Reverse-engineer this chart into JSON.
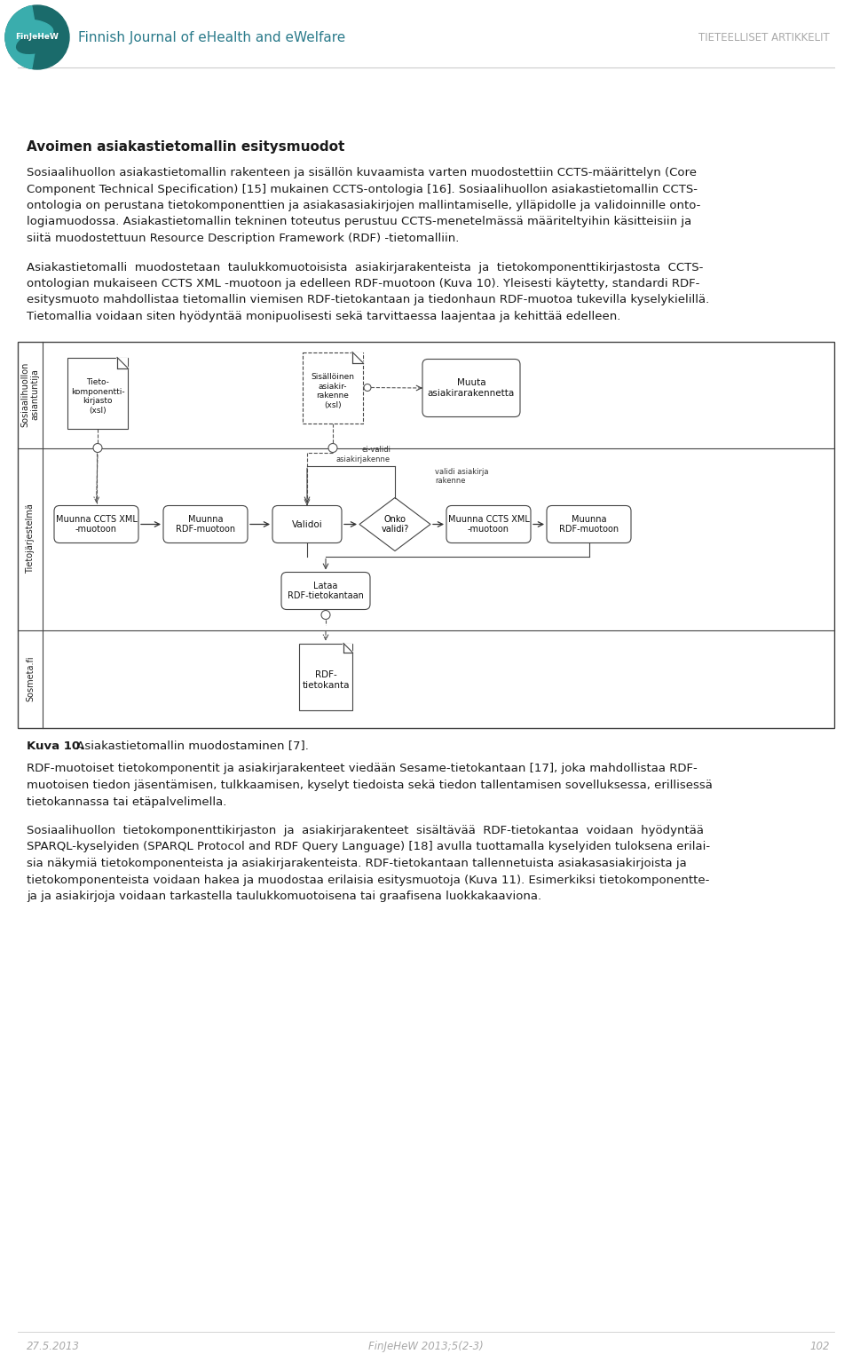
{
  "page_bg": "#ffffff",
  "header_line_color": "#cccccc",
  "journal_name": "Finnish Journal of eHealth and eWelfare",
  "journal_abbr": "FinJeHeW",
  "article_type": "TIETEELLISET ARTIKKELIT",
  "section_title": "Avoimen asiakastietomallin esitysmuodot",
  "para1_lines": [
    "Sosiaalihuollon asiakastietomallin rakenteen ja sisällön kuvaamista varten muodostettiin CCTS-määrittelyn (Core",
    "Component Technical Specification) [15] mukainen CCTS-ontologia [16]. Sosiaalihuollon asiakastietomallin CCTS-",
    "ontologia on perustana tietokomponenttien ja asiakasasiakirjojen mallintamiselle, ylläpidolle ja validoinnille onto-",
    "logiamuodossa. Asiakastietomallin tekninen toteutus perustuu CCTS-menetelmässä määriteltyihin käsitteisiin ja",
    "siitä muodostettuun Resource Description Framework (RDF) -tietomalliin."
  ],
  "para2_lines": [
    "Asiakastietomalli  muodostetaan  taulukkomuotoisista  asiakirjarakenteista  ja  tietokomponenttikirjastosta  CCTS-",
    "ontologian mukaiseen CCTS XML -muotoon ja edelleen RDF-muotoon (Kuva 10). Yleisesti käytetty, standardi RDF-",
    "esitysmuoto mahdollistaa tietomallin viemisen RDF-tietokantaan ja tiedonhaun RDF-muotoa tukevilla kyselykielillä.",
    "Tietomallia voidaan siten hyödyntää monipuolisesti sekä tarvittaessa laajentaa ja kehittää edelleen."
  ],
  "caption_bold": "Kuva 10.",
  "caption_rest": " Asiakastietomallin muodostaminen [7].",
  "para3_lines": [
    "RDF-muotoiset tietokomponentit ja asiakirjarakenteet viedään Sesame-tietokantaan [17], joka mahdollistaa RDF-",
    "muotoisen tiedon jäsentämisen, tulkkaamisen, kyselyt tiedoista sekä tiedon tallentamisen sovelluksessa, erillisessä",
    "tietokannassa tai etäpalvelimella."
  ],
  "para4_lines": [
    "Sosiaalihuollon  tietokomponenttikirjaston  ja  asiakirjarakenteet  sisältävää  RDF-tietokantaa  voidaan  hyödyntää",
    "SPARQL-kyselyiden (SPARQL Protocol and RDF Query Language) [18] avulla tuottamalla kyselyiden tuloksena erilai-",
    "sia näkymiä tietokomponenteista ja asiakirjarakenteista. RDF-tietokantaan tallennetuista asiakasasiakirjoista ja",
    "tietokomponenteista voidaan hakea ja muodostaa erilaisia esitysmuotoja (Kuva 11). Esimerkiksi tietokomponentte-",
    "ja ja asiakirjoja voidaan tarkastella taulukkomuotoisena tai graafisena luokkakaaviona."
  ],
  "footer_date": "27.5.2013",
  "footer_journal": "FinJeHeW 2013;5(2-3)",
  "footer_page": "102",
  "text_color": "#1a1a1a",
  "gray_text": "#aaaaaa",
  "diagram_border": "#444444",
  "diagram_bg": "#ffffff",
  "row_label1": "Sosiaalihuollon\nasiantuntija",
  "row_label2": "Tietojärjestelmä",
  "row_label3": "Sosmeta.fi"
}
